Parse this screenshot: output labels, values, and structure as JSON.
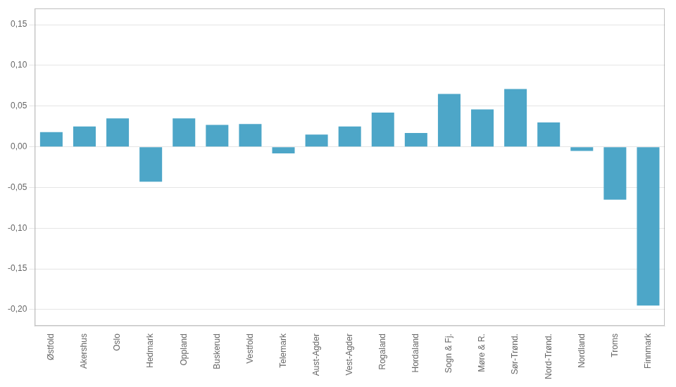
{
  "chart_data": {
    "type": "bar",
    "categories": [
      "Østfold",
      "Akershus",
      "Oslo",
      "Hedmark",
      "Oppland",
      "Buskerud",
      "Vestfold",
      "Telemark",
      "Aust-Agder",
      "Vest-Agder",
      "Rogaland",
      "Hordaland",
      "Sogn & Fj.",
      "Møre & R.",
      "Sør-Trønd.",
      "Nord-Trønd.",
      "Nordland",
      "Troms",
      "Finnmark"
    ],
    "values": [
      0.018,
      0.025,
      0.035,
      -0.043,
      0.035,
      0.027,
      0.028,
      -0.008,
      0.015,
      0.025,
      0.042,
      0.017,
      0.065,
      0.046,
      0.071,
      0.03,
      -0.005,
      -0.065,
      -0.195
    ],
    "color": "#4DA6C8",
    "ylim": [
      -0.22,
      0.17
    ],
    "yticks": [
      {
        "value": -0.2,
        "label": "-0,20"
      },
      {
        "value": -0.15,
        "label": "-0,15"
      },
      {
        "value": -0.1,
        "label": "-0,10"
      },
      {
        "value": -0.05,
        "label": "-0,05"
      },
      {
        "value": 0.0,
        "label": "0,00"
      },
      {
        "value": 0.05,
        "label": "0,05"
      },
      {
        "value": 0.1,
        "label": "0,10"
      },
      {
        "value": 0.15,
        "label": "0,15"
      }
    ],
    "grid": true
  }
}
